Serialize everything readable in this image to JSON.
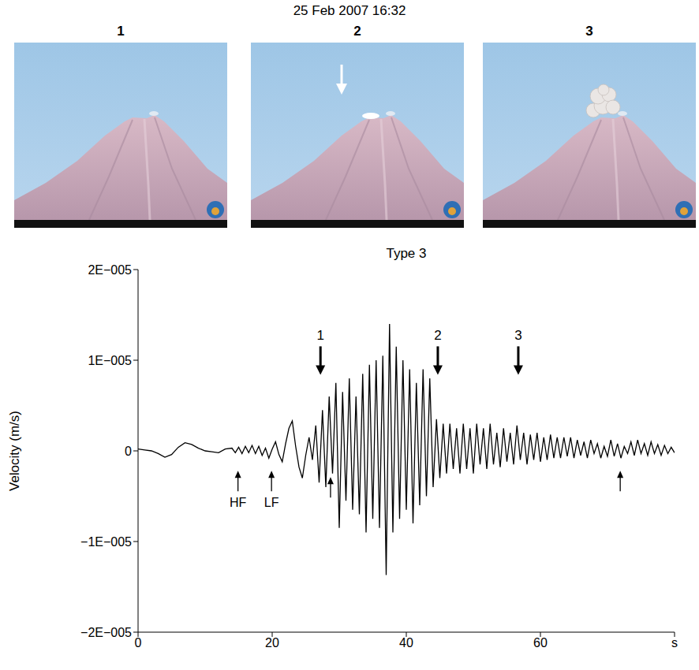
{
  "photos": {
    "title": "25 Feb 2007 16:32",
    "panels": [
      "1",
      "2",
      "3"
    ]
  },
  "chart_data": {
    "type": "line",
    "title": "Type 3",
    "y_label": "Velocity (m/s)",
    "xlim": [
      0,
      80
    ],
    "xticks": [
      0,
      20,
      40,
      60,
      {
        "value": 80,
        "label": "s"
      }
    ],
    "ylim": [
      -2e-05,
      2e-05
    ],
    "yticks": [
      {
        "value": -2e-05,
        "label": "−2E−005"
      },
      {
        "value": -1e-05,
        "label": "−1E−005"
      },
      0,
      {
        "value": 1e-05,
        "label": "1E−005"
      },
      {
        "value": 2e-05,
        "label": "2E−005"
      }
    ],
    "grid": false,
    "color": "#000000",
    "x": [
      0,
      1,
      2,
      3,
      4,
      5,
      6,
      7,
      8,
      9,
      10,
      11,
      12,
      13,
      14,
      14.5,
      15,
      15.5,
      16,
      16.5,
      17,
      17.5,
      18,
      18.5,
      19,
      19.5,
      20,
      20.5,
      21,
      21.5,
      22,
      22.5,
      23,
      23.5,
      24,
      24.5,
      25,
      25.5,
      26,
      26.5,
      27,
      27.5,
      28,
      28.5,
      29,
      29.5,
      30,
      30.5,
      31,
      31.5,
      32,
      32.5,
      33,
      33.5,
      34,
      34.5,
      35,
      35.5,
      36,
      36.5,
      37,
      37.5,
      38,
      38.5,
      39,
      39.5,
      40,
      40.5,
      41,
      41.5,
      42,
      42.5,
      43,
      43.5,
      44,
      44.5,
      45,
      45.5,
      46,
      46.5,
      47,
      47.5,
      48,
      48.5,
      49,
      49.5,
      50,
      50.5,
      51,
      51.5,
      52,
      52.5,
      53,
      53.5,
      54,
      54.5,
      55,
      55.5,
      56,
      56.5,
      57,
      57.5,
      58,
      58.5,
      59,
      59.5,
      60,
      60.5,
      61,
      61.5,
      62,
      62.5,
      63,
      63.5,
      64,
      64.5,
      65,
      65.5,
      66,
      66.5,
      67,
      67.5,
      68,
      68.5,
      69,
      69.5,
      70,
      70.5,
      71,
      71.5,
      72,
      72.5,
      73,
      73.5,
      74,
      74.5,
      75,
      75.5,
      76,
      76.5,
      77,
      77.5,
      78,
      78.5,
      79,
      79.5,
      80
    ],
    "values": [
      2e-07,
      1e-07,
      0,
      -3e-07,
      -7e-07,
      -4e-07,
      4e-07,
      9e-07,
      7e-07,
      3e-07,
      0,
      -1e-07,
      -2e-07,
      2e-07,
      3e-07,
      -2e-07,
      4e-07,
      -3e-07,
      5e-07,
      -2e-07,
      6e-07,
      -3e-07,
      5e-07,
      -5e-07,
      3e-07,
      -8e-07,
      2e-07,
      1e-06,
      -4e-07,
      -1.2e-06,
      8e-07,
      2.5e-06,
      3.3e-06,
      5e-07,
      -1.8e-06,
      -3e-06,
      -5e-07,
      1.5e-06,
      -1e-06,
      2.8e-06,
      -3.5e-06,
      4.5e-06,
      -4e-06,
      6e-06,
      -2.5e-06,
      7.5e-06,
      -8.5e-06,
      6.5e-06,
      -5.5e-06,
      8e-06,
      -6.5e-06,
      6e-06,
      -7e-06,
      8.5e-06,
      -9e-06,
      9.5e-06,
      -7.5e-06,
      1e-05,
      -8.5e-06,
      1.05e-05,
      -1.37e-05,
      1.4e-05,
      -9e-06,
      1.15e-05,
      -7.5e-06,
      1e-05,
      -6.5e-06,
      9e-06,
      -8e-06,
      7.5e-06,
      -6e-06,
      9e-06,
      -5e-06,
      8e-06,
      -4e-06,
      3.5e-06,
      -3e-06,
      3e-06,
      -2.5e-06,
      3e-06,
      -2e-06,
      2.5e-06,
      -2.5e-06,
      3e-06,
      -2e-06,
      2.5e-06,
      -2.5e-06,
      3e-06,
      -1.5e-06,
      2.5e-06,
      -2e-06,
      3e-06,
      -1.5e-06,
      2e-06,
      -1.8e-06,
      2.5e-06,
      -1.2e-06,
      2e-06,
      -1.5e-06,
      2.8e-06,
      -1e-06,
      2e-06,
      -1.5e-06,
      1.8e-06,
      -1e-06,
      2e-06,
      -1.2e-06,
      1.5e-06,
      -1e-06,
      1.8e-06,
      -8e-07,
      1.5e-06,
      -8e-07,
      1.5e-06,
      -6e-07,
      1.5e-06,
      -8e-07,
      1.2e-06,
      -5e-07,
      1e-06,
      -8e-07,
      1.2e-06,
      -3e-07,
      8e-07,
      -8e-07,
      5e-07,
      -6e-07,
      1.2e-06,
      -6e-07,
      8e-07,
      -8e-07,
      5e-07,
      -3e-07,
      1e-06,
      -5e-07,
      1.2e-06,
      -3e-07,
      8e-07,
      -5e-07,
      1e-06,
      -3e-07,
      7e-07,
      -5e-07,
      6e-07,
      -3e-07,
      4e-07,
      -2e-07
    ],
    "down_arrows": [
      {
        "x": 27.2,
        "y": 8.4e-06,
        "label": "1"
      },
      {
        "x": 44.7,
        "y": 8.4e-06,
        "label": "2"
      },
      {
        "x": 56.7,
        "y": 8.4e-06,
        "label": "3"
      }
    ],
    "up_arrows": [
      {
        "x": 14.9,
        "y": -2.2e-06,
        "label": "HF"
      },
      {
        "x": 19.9,
        "y": -2.2e-06,
        "label": "LF"
      },
      {
        "x": 28.7,
        "y": -2.9e-06
      },
      {
        "x": 71.9,
        "y": -2.2e-06
      }
    ]
  }
}
